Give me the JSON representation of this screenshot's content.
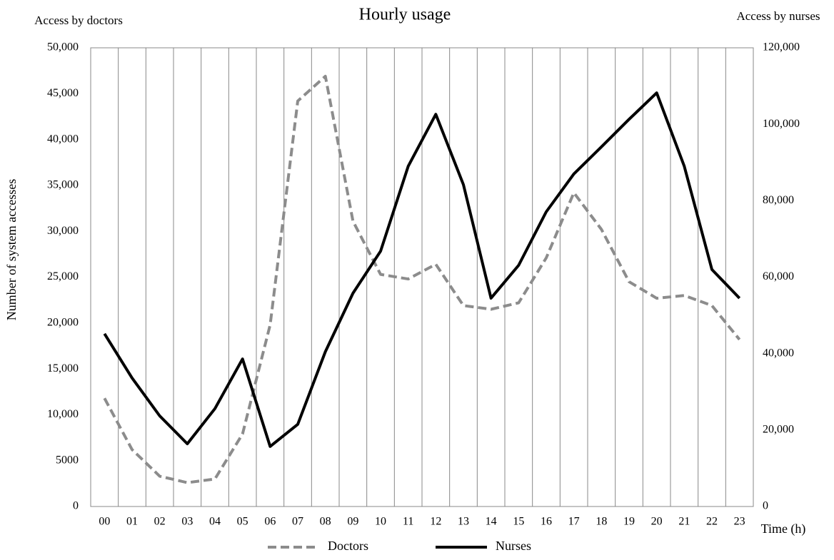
{
  "chart_data": {
    "type": "line",
    "title": "Hourly usage",
    "y_axis_title": "Access by doctors",
    "y2_axis_title": "Access by nurses",
    "y_label": "Number of system accesses",
    "x_label": "Time (h)",
    "categories": [
      "00",
      "01",
      "02",
      "03",
      "04",
      "05",
      "06",
      "07",
      "08",
      "09",
      "10",
      "11",
      "12",
      "13",
      "14",
      "15",
      "16",
      "17",
      "18",
      "19",
      "20",
      "21",
      "22",
      "23"
    ],
    "series": [
      {
        "name": "Doctors",
        "color": "#8c8c8c",
        "linestyle": "dashed",
        "values": [
          11800,
          6200,
          3300,
          2600,
          3000,
          7900,
          19800,
          44200,
          46900,
          31100,
          25300,
          24800,
          26400,
          21900,
          21500,
          22200,
          27100,
          34200,
          30200,
          24500,
          22700,
          23000,
          21900,
          18200
        ]
      },
      {
        "name": "Nurses",
        "color": "#000000",
        "linestyle": "solid",
        "axis": "y2",
        "values": [
          45200,
          33600,
          23700,
          16400,
          25600,
          38600,
          15700,
          21500,
          40500,
          55800,
          66800,
          89000,
          102600,
          84200,
          54500,
          63100,
          77100,
          87000,
          94100,
          101300,
          108200,
          89000,
          62000,
          54500
        ]
      }
    ],
    "ylim": [
      0,
      50000
    ],
    "yticks": [
      0,
      5000,
      {
        "value": 10000,
        "label": "10,000"
      },
      {
        "value": 15000,
        "label": "15,000"
      },
      {
        "value": 20000,
        "label": "20,000"
      },
      {
        "value": 25000,
        "label": "25,000"
      },
      {
        "value": 30000,
        "label": "30,000"
      },
      {
        "value": 35000,
        "label": "35,000"
      },
      {
        "value": 40000,
        "label": "40,000"
      },
      {
        "value": 45000,
        "label": "45,000"
      },
      {
        "value": 50000,
        "label": "50,000"
      }
    ],
    "y2lim": [
      0,
      120000
    ],
    "y2ticks": [
      0,
      {
        "value": 20000,
        "label": "20,000"
      },
      {
        "value": 40000,
        "label": "40,000"
      },
      {
        "value": 60000,
        "label": "60,000"
      },
      {
        "value": 80000,
        "label": "80,000"
      },
      {
        "value": 100000,
        "label": "100,000"
      },
      {
        "value": 120000,
        "label": "120,000"
      }
    ],
    "grid": "x",
    "legend": "bottom"
  }
}
